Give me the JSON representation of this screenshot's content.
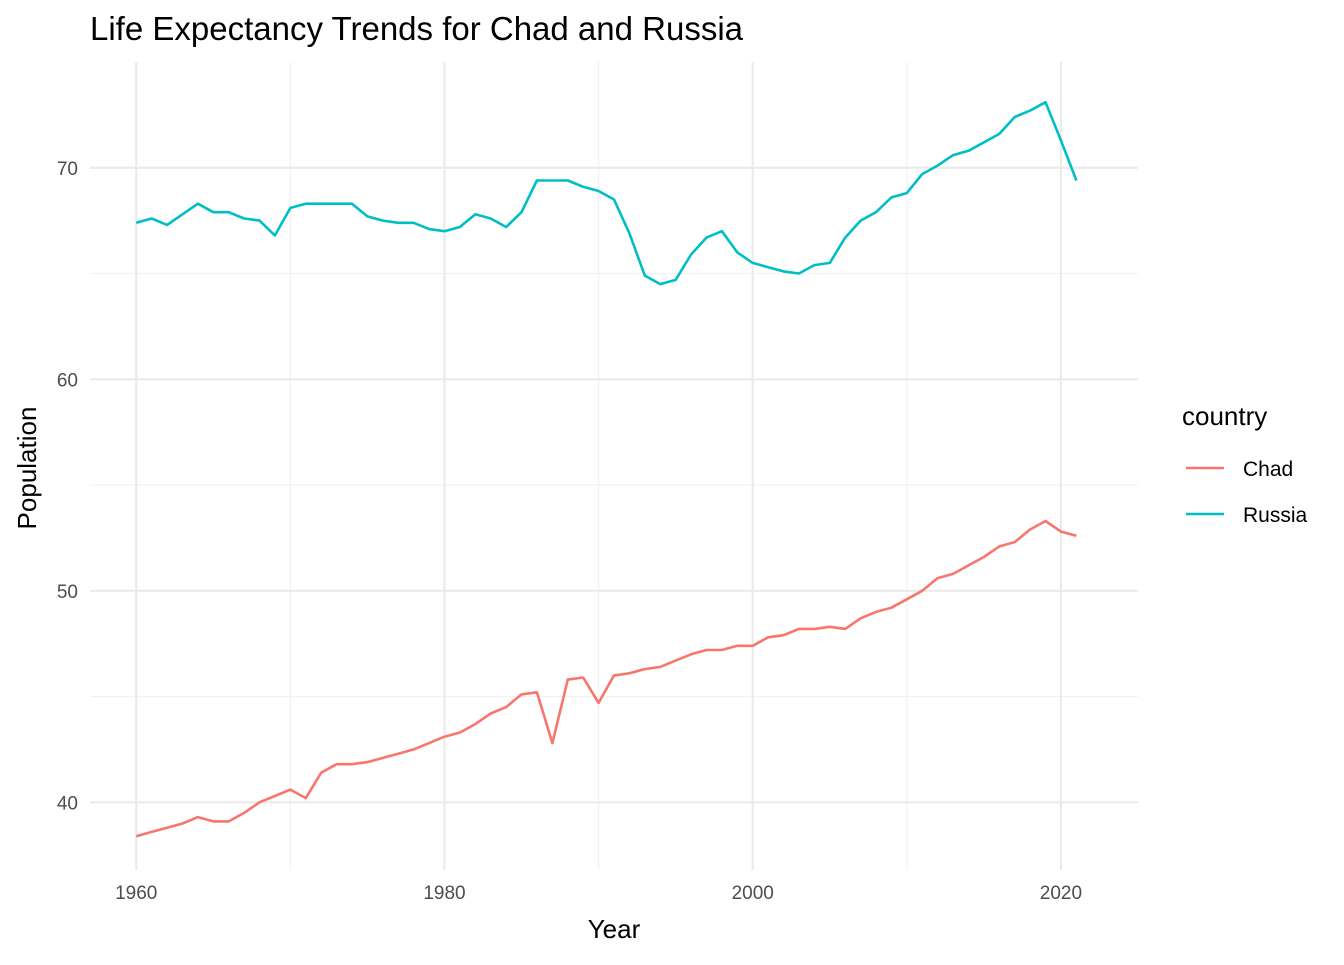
{
  "chart_data": {
    "type": "line",
    "title": "Life Expectancy Trends for Chad and Russia",
    "xlabel": "Year",
    "ylabel": "Population",
    "xlim": [
      1957,
      2025
    ],
    "ylim": [
      36.8,
      75.0
    ],
    "x_ticks": [
      1960,
      1980,
      2000,
      2020
    ],
    "x_ticks_labels": [
      "1960",
      "1980",
      "2000",
      "2020"
    ],
    "x_minor": [
      1970,
      1990,
      2010
    ],
    "y_ticks": [
      40,
      50,
      60,
      70
    ],
    "y_ticks_labels": [
      "40",
      "50",
      "60",
      "70"
    ],
    "y_minor": [
      45,
      55,
      65
    ],
    "grid": true,
    "legend": {
      "title": "country",
      "position": "right"
    },
    "x": [
      1960,
      1961,
      1962,
      1963,
      1964,
      1965,
      1966,
      1967,
      1968,
      1969,
      1970,
      1971,
      1972,
      1973,
      1974,
      1975,
      1976,
      1977,
      1978,
      1979,
      1980,
      1981,
      1982,
      1983,
      1984,
      1985,
      1986,
      1987,
      1988,
      1989,
      1990,
      1991,
      1992,
      1993,
      1994,
      1995,
      1996,
      1997,
      1998,
      1999,
      2000,
      2001,
      2002,
      2003,
      2004,
      2005,
      2006,
      2007,
      2008,
      2009,
      2010,
      2011,
      2012,
      2013,
      2014,
      2015,
      2016,
      2017,
      2018,
      2019,
      2020,
      2021
    ],
    "series": [
      {
        "name": "Chad",
        "color": "#F8766D",
        "values": [
          38.4,
          38.6,
          38.8,
          39.0,
          39.3,
          39.1,
          39.1,
          39.5,
          40.0,
          40.3,
          40.6,
          40.2,
          41.4,
          41.8,
          41.8,
          41.9,
          42.1,
          42.3,
          42.5,
          42.8,
          43.1,
          43.3,
          43.7,
          44.2,
          44.5,
          45.1,
          45.2,
          42.8,
          45.8,
          45.9,
          44.7,
          46.0,
          46.1,
          46.3,
          46.4,
          46.7,
          47.0,
          47.2,
          47.2,
          47.4,
          47.4,
          47.8,
          47.9,
          48.2,
          48.2,
          48.3,
          48.2,
          48.7,
          49.0,
          49.2,
          49.6,
          50.0,
          50.6,
          50.8,
          51.2,
          51.6,
          52.1,
          52.3,
          52.9,
          53.3,
          52.8,
          52.6
        ]
      },
      {
        "name": "Russia",
        "color": "#00BFC4",
        "values": [
          67.4,
          67.6,
          67.3,
          67.8,
          68.3,
          67.9,
          67.9,
          67.6,
          67.5,
          66.8,
          68.1,
          68.3,
          68.3,
          68.3,
          68.3,
          67.7,
          67.5,
          67.4,
          67.4,
          67.1,
          67.0,
          67.2,
          67.8,
          67.6,
          67.2,
          67.9,
          69.4,
          69.4,
          69.4,
          69.1,
          68.9,
          68.5,
          66.9,
          64.9,
          64.5,
          64.7,
          65.9,
          66.7,
          67.0,
          66.0,
          65.5,
          65.3,
          65.1,
          65.0,
          65.4,
          65.5,
          66.7,
          67.5,
          67.9,
          68.6,
          68.8,
          69.7,
          70.1,
          70.6,
          70.8,
          71.2,
          71.6,
          72.4,
          72.7,
          73.1,
          71.3,
          69.4
        ]
      }
    ]
  }
}
